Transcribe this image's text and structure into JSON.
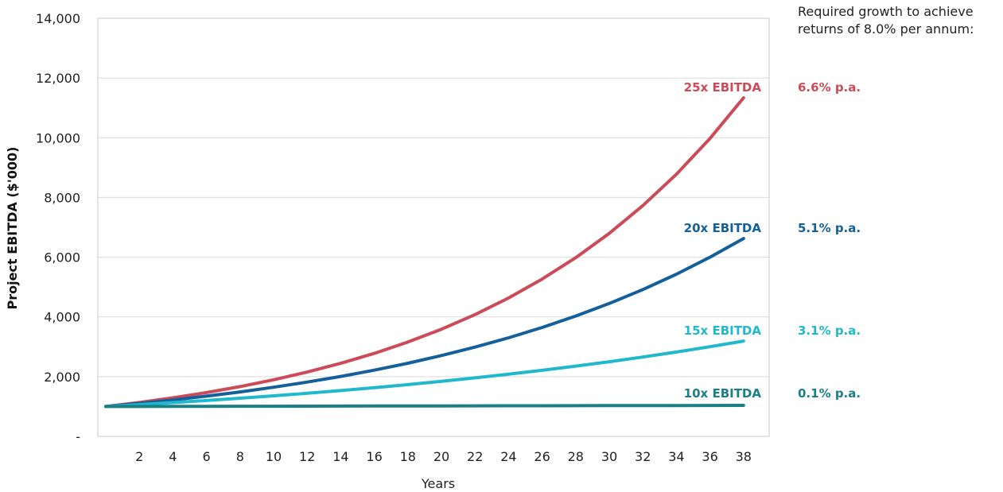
{
  "chart_data": {
    "type": "line",
    "xlabel": "Years",
    "ylabel": "Project EBITDA ($'000)",
    "x": [
      0,
      2,
      4,
      6,
      8,
      10,
      12,
      14,
      16,
      18,
      20,
      22,
      24,
      26,
      28,
      30,
      32,
      34,
      36,
      38
    ],
    "x_tick_labels": [
      "2",
      "4",
      "6",
      "8",
      "10",
      "12",
      "14",
      "16",
      "18",
      "20",
      "22",
      "24",
      "26",
      "28",
      "30",
      "32",
      "34",
      "36",
      "38"
    ],
    "ylim": [
      0,
      14000
    ],
    "y_tick_labels": [
      "-",
      "2,000",
      "4,000",
      "6,000",
      "8,000",
      "10,000",
      "12,000",
      "14,000"
    ],
    "grid": true,
    "annotation": "Required growth to achieve returns of 8.0% per annum:",
    "series": [
      {
        "name": "25x EBITDA",
        "growth": "6.6% p.a.",
        "color": "#cc4b58",
        "values": [
          1000,
          1136,
          1291,
          1467,
          1667,
          1895,
          2153,
          2446,
          2779,
          3158,
          3589,
          4078,
          4634,
          5266,
          5984,
          6799,
          7726,
          8779,
          9976,
          11336
        ]
      },
      {
        "name": "20x EBITDA",
        "growth": "5.1% p.a.",
        "color": "#14609c",
        "values": [
          1000,
          1105,
          1220,
          1348,
          1489,
          1645,
          1817,
          2007,
          2217,
          2449,
          2706,
          2989,
          3301,
          3647,
          4029,
          4450,
          4916,
          5430,
          5998,
          6626
        ]
      },
      {
        "name": "15x EBITDA",
        "growth": "3.1% p.a.",
        "color": "#20b8cc",
        "values": [
          1000,
          1063,
          1130,
          1201,
          1277,
          1357,
          1443,
          1533,
          1630,
          1733,
          1842,
          1958,
          2081,
          2212,
          2352,
          2500,
          2657,
          2825,
          3003,
          3192
        ]
      },
      {
        "name": "10x EBITDA",
        "growth": "0.1% p.a.",
        "color": "#1b7f86",
        "values": [
          1000,
          1002,
          1004,
          1006,
          1008,
          1010,
          1012,
          1014,
          1016,
          1018,
          1020,
          1022,
          1024,
          1026,
          1028,
          1030,
          1032,
          1034,
          1036,
          1038
        ]
      }
    ]
  }
}
